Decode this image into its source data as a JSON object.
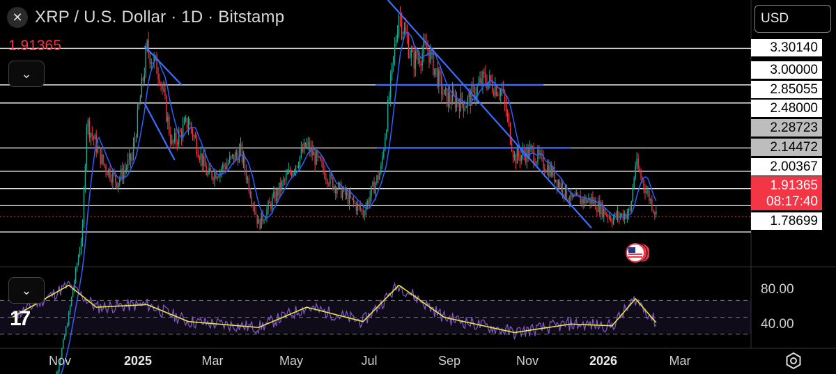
{
  "header": {
    "title": "XRP / U.S. Dollar · 1D · Bitstamp",
    "close_icon": "x-icon",
    "last_price": "1.91365"
  },
  "controls": {
    "currency": "USD",
    "collapse_icon": "chevron-down-icon",
    "settings_icon": "gear-icon",
    "logo": "17"
  },
  "price_levels": [
    {
      "value": "3.30140",
      "style": "white"
    },
    {
      "value": "3.00000",
      "style": "white"
    },
    {
      "value": "2.85055",
      "style": "white"
    },
    {
      "value": "2.48000",
      "style": "white"
    },
    {
      "value": "2.28723",
      "style": "grey"
    },
    {
      "value": "2.14472",
      "style": "grey"
    },
    {
      "value": "2.00367",
      "style": "white"
    },
    {
      "value": "1.78699",
      "style": "white"
    }
  ],
  "current": {
    "price": "1.91365",
    "countdown": "08:17:40"
  },
  "rsi_axis": [
    "80.00",
    "40.00"
  ],
  "time_axis": [
    {
      "label": "Nov",
      "bold": false
    },
    {
      "label": "2025",
      "bold": true
    },
    {
      "label": "Mar",
      "bold": false
    },
    {
      "label": "May",
      "bold": false
    },
    {
      "label": "Jul",
      "bold": false
    },
    {
      "label": "Sep",
      "bold": false
    },
    {
      "label": "Nov",
      "bold": false
    },
    {
      "label": "2026",
      "bold": true
    },
    {
      "label": "Mar",
      "bold": false
    }
  ],
  "colors": {
    "up": "#22ab94",
    "down": "#f23645",
    "ma": "#2962ff",
    "rsi": "#7e57c2",
    "rsi_ma": "#e8e840",
    "trend": "#2962ff"
  },
  "chart_data": {
    "type": "candlestick",
    "title": "XRP / U.S. Dollar · 1D · Bitstamp",
    "x_range": [
      "2024-10-01",
      "2026-03-31"
    ],
    "y_range": [
      1.5,
      3.7
    ],
    "horizontal_levels": [
      3.3014,
      3.0,
      2.85055,
      2.48,
      2.28723,
      2.14472,
      2.00367,
      1.78699
    ],
    "current_price": 1.91365,
    "close_series": [
      {
        "date": "2024-11-05",
        "close": 0.5
      },
      {
        "date": "2024-11-12",
        "close": 0.65
      },
      {
        "date": "2024-11-20",
        "close": 1.1
      },
      {
        "date": "2024-11-30",
        "close": 1.8
      },
      {
        "date": "2024-12-03",
        "close": 2.7
      },
      {
        "date": "2024-12-15",
        "close": 2.35
      },
      {
        "date": "2024-12-25",
        "close": 2.2
      },
      {
        "date": "2025-01-05",
        "close": 2.4
      },
      {
        "date": "2025-01-16",
        "close": 3.3
      },
      {
        "date": "2025-01-25",
        "close": 3.1
      },
      {
        "date": "2025-02-03",
        "close": 2.5
      },
      {
        "date": "2025-02-15",
        "close": 2.7
      },
      {
        "date": "2025-03-01",
        "close": 2.25
      },
      {
        "date": "2025-03-10",
        "close": 2.3
      },
      {
        "date": "2025-03-25",
        "close": 2.45
      },
      {
        "date": "2025-04-07",
        "close": 1.85
      },
      {
        "date": "2025-04-20",
        "close": 2.1
      },
      {
        "date": "2025-05-12",
        "close": 2.5
      },
      {
        "date": "2025-05-30",
        "close": 2.2
      },
      {
        "date": "2025-06-22",
        "close": 1.95
      },
      {
        "date": "2025-07-05",
        "close": 2.3
      },
      {
        "date": "2025-07-18",
        "close": 3.6
      },
      {
        "date": "2025-07-28",
        "close": 3.2
      },
      {
        "date": "2025-08-08",
        "close": 3.3
      },
      {
        "date": "2025-08-20",
        "close": 2.9
      },
      {
        "date": "2025-09-05",
        "close": 2.85
      },
      {
        "date": "2025-09-18",
        "close": 3.05
      },
      {
        "date": "2025-10-01",
        "close": 2.95
      },
      {
        "date": "2025-10-10",
        "close": 2.4
      },
      {
        "date": "2025-10-22",
        "close": 2.45
      },
      {
        "date": "2025-11-05",
        "close": 2.3
      },
      {
        "date": "2025-11-20",
        "close": 2.05
      },
      {
        "date": "2025-12-05",
        "close": 2.05
      },
      {
        "date": "2025-12-20",
        "close": 1.9
      },
      {
        "date": "2026-01-02",
        "close": 1.95
      },
      {
        "date": "2026-01-06",
        "close": 2.35
      },
      {
        "date": "2026-01-15",
        "close": 2.1
      },
      {
        "date": "2026-01-22",
        "close": 1.91
      }
    ],
    "rsi": {
      "range": [
        20,
        100
      ],
      "levels": [
        70,
        50,
        30
      ],
      "series": [
        {
          "date": "2024-10-10",
          "value": 50
        },
        {
          "date": "2024-11-20",
          "value": 88
        },
        {
          "date": "2024-12-10",
          "value": 62
        },
        {
          "date": "2025-01-16",
          "value": 65
        },
        {
          "date": "2025-02-15",
          "value": 45
        },
        {
          "date": "2025-04-07",
          "value": 38
        },
        {
          "date": "2025-05-12",
          "value": 62
        },
        {
          "date": "2025-06-22",
          "value": 45
        },
        {
          "date": "2025-07-18",
          "value": 88
        },
        {
          "date": "2025-08-20",
          "value": 50
        },
        {
          "date": "2025-10-10",
          "value": 32
        },
        {
          "date": "2025-11-20",
          "value": 42
        },
        {
          "date": "2025-12-20",
          "value": 40
        },
        {
          "date": "2026-01-06",
          "value": 72
        },
        {
          "date": "2026-01-22",
          "value": 42
        }
      ]
    }
  }
}
